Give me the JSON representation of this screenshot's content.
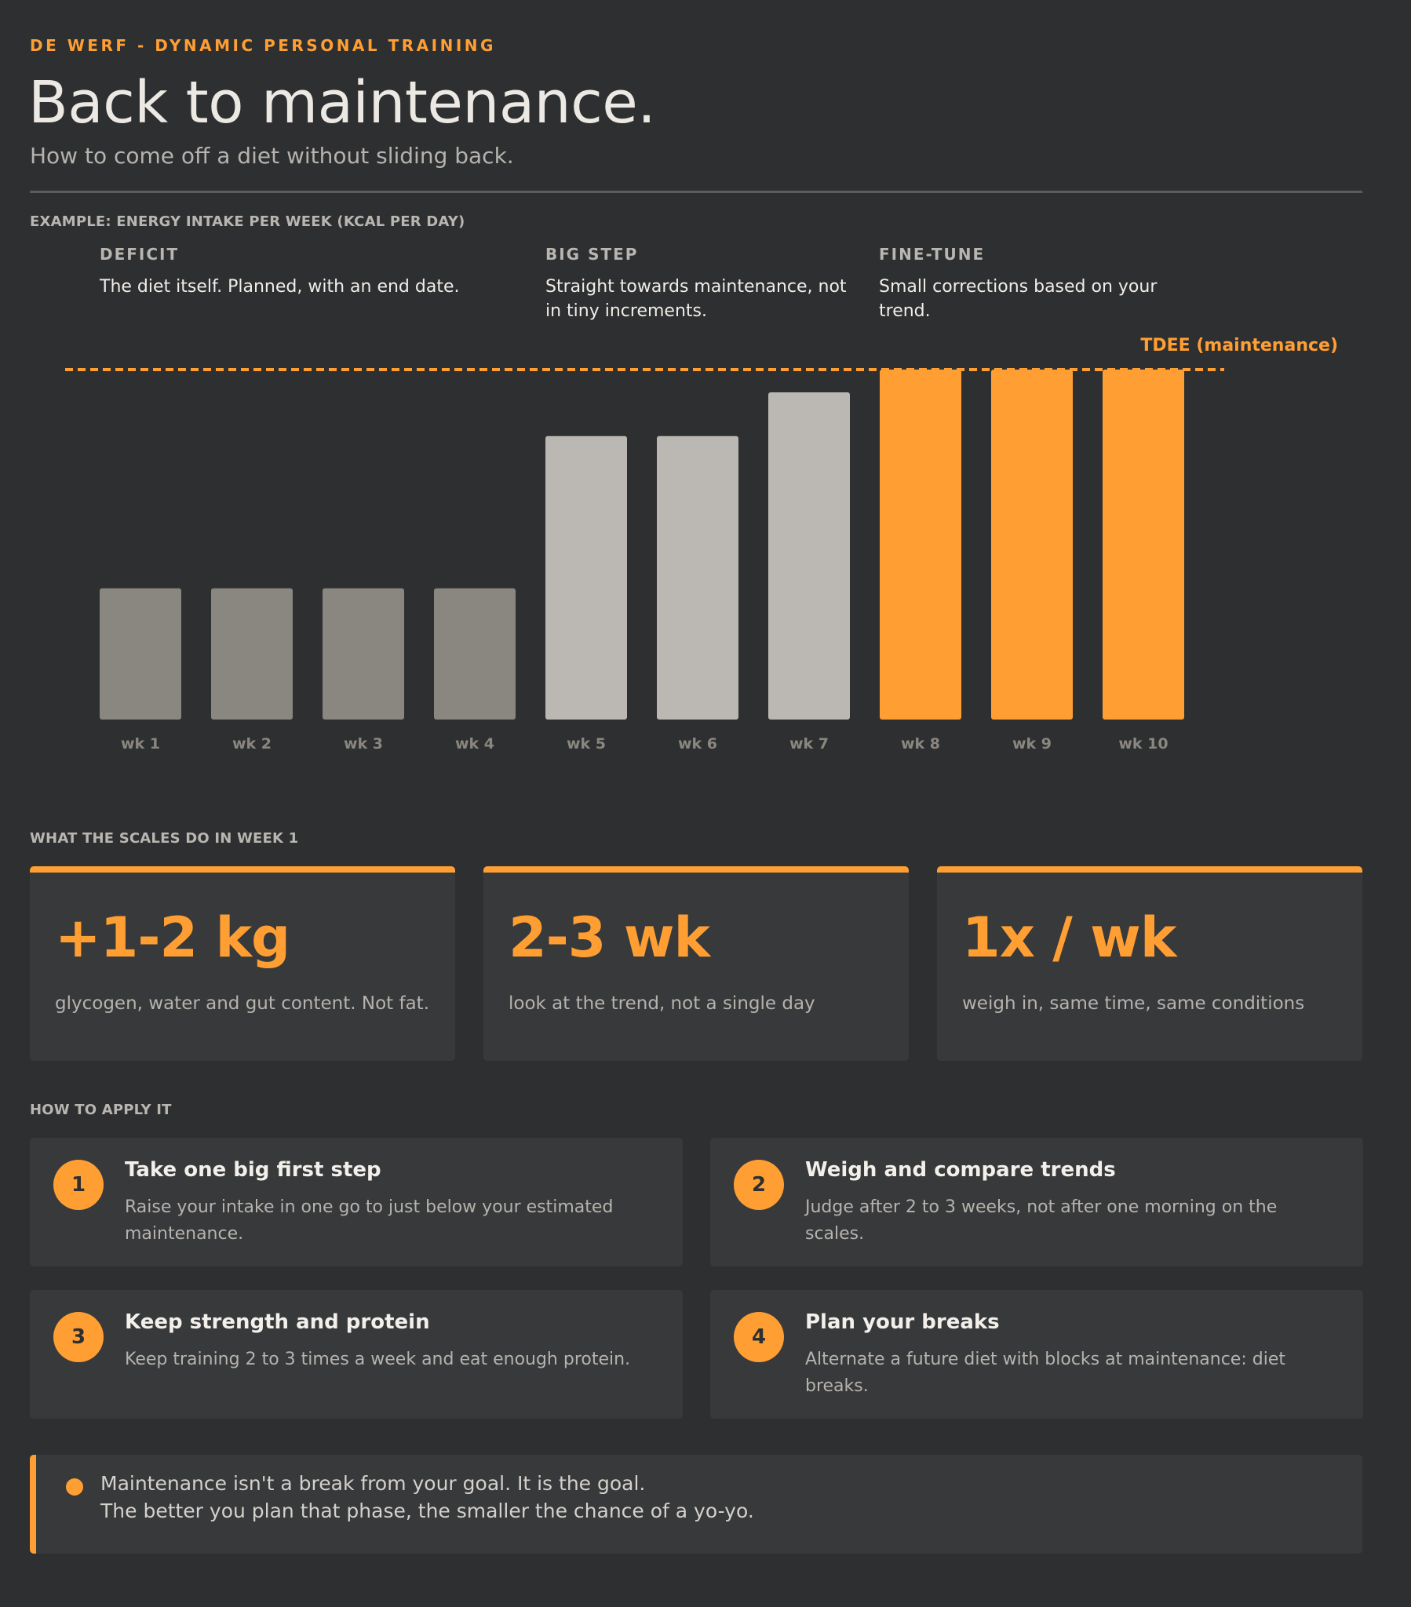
{
  "header": {
    "brand": "DE WERF - DYNAMIC PERSONAL TRAINING",
    "title": "Back to maintenance.",
    "subtitle": "How to come off a diet without sliding back."
  },
  "chart_section": {
    "label": "EXAMPLE: ENERGY INTAKE PER WEEK (KCAL PER DAY)",
    "phases": [
      {
        "title": "DEFICIT",
        "text": "The diet itself. Planned, with an end date."
      },
      {
        "title": "BIG STEP",
        "text": "Straight towards maintenance, not in tiny increments."
      },
      {
        "title": "FINE-TUNE",
        "text": "Small corrections based on your trend."
      }
    ]
  },
  "chart_data": {
    "type": "bar",
    "title": "",
    "xlabel": "",
    "ylabel": "",
    "categories": [
      "wk 1",
      "wk 2",
      "wk 3",
      "wk 4",
      "wk 5",
      "wk 6",
      "wk 7",
      "wk 8",
      "wk 9",
      "wk 10"
    ],
    "values": [
      37.5,
      37.5,
      37.5,
      37.5,
      81,
      81,
      93.5,
      100,
      100,
      100
    ],
    "value_unit": "percent of TDEE",
    "phase_of_bar": [
      "deficit",
      "deficit",
      "deficit",
      "deficit",
      "step",
      "step",
      "step",
      "finetune",
      "finetune",
      "finetune"
    ],
    "reference_line": {
      "label": "TDEE (maintenance)",
      "value": 100,
      "style": "dashed"
    },
    "ylim": [
      0,
      100
    ],
    "grid": false,
    "colors": {
      "deficit": "#8a8780",
      "step": "#bbb8b3",
      "finetune": "#ff9f33",
      "reference": "#ff9f33",
      "tick": "#8a8780"
    }
  },
  "scales_section": {
    "label": "WHAT THE SCALES DO IN WEEK 1",
    "cards": [
      {
        "big": "+1-2 kg",
        "text": "glycogen, water and gut content. Not fat."
      },
      {
        "big": "2-3 wk",
        "text": "look at the trend, not a single day"
      },
      {
        "big": "1x / wk",
        "text": "weigh in, same time, same conditions"
      }
    ]
  },
  "apply_section": {
    "label": "HOW TO APPLY IT",
    "steps": [
      {
        "num": "1",
        "title": "Take one big first step",
        "text": "Raise your intake in one go to just below your estimated maintenance."
      },
      {
        "num": "2",
        "title": "Weigh and compare trends",
        "text": "Judge after 2 to 3 weeks, not after one morning on the scales."
      },
      {
        "num": "3",
        "title": "Keep strength and protein",
        "text": "Keep training 2 to 3 times a week and eat enough protein."
      },
      {
        "num": "4",
        "title": "Plan your breaks",
        "text": "Alternate a future diet with blocks at maintenance: diet breaks."
      }
    ]
  },
  "note": {
    "line1": "Maintenance isn't a break from your goal. It is the goal.",
    "line2": "The better you plan that phase, the smaller the chance of a yo-yo."
  }
}
